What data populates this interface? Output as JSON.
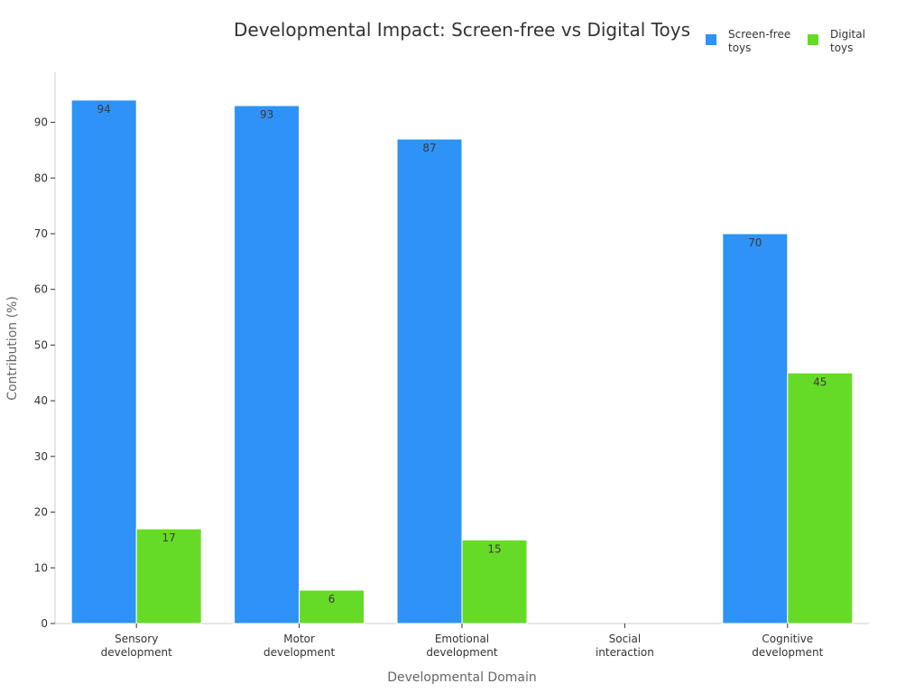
{
  "chart_data": {
    "type": "bar",
    "title": "Developmental Impact: Screen-free vs Digital Toys",
    "xlabel": "Developmental Domain",
    "ylabel": "Contribution (%)",
    "categories": [
      [
        "Sensory",
        "development"
      ],
      [
        "Motor",
        "development"
      ],
      [
        "Emotional",
        "development"
      ],
      [
        "Social",
        "interaction"
      ],
      [
        "Cognitive",
        "development"
      ]
    ],
    "series": [
      {
        "name": [
          "Screen-free",
          "toys"
        ],
        "color": "#2e93f6",
        "values": [
          94,
          93,
          87,
          null,
          70
        ]
      },
      {
        "name": [
          "Digital",
          "toys"
        ],
        "color": "#66db27",
        "values": [
          17,
          6,
          15,
          null,
          45
        ]
      }
    ],
    "ylim": [
      0,
      99
    ],
    "yticks": [
      0,
      10,
      20,
      30,
      40,
      50,
      60,
      70,
      80,
      90
    ],
    "grid": false,
    "legend_position": "top-right"
  }
}
